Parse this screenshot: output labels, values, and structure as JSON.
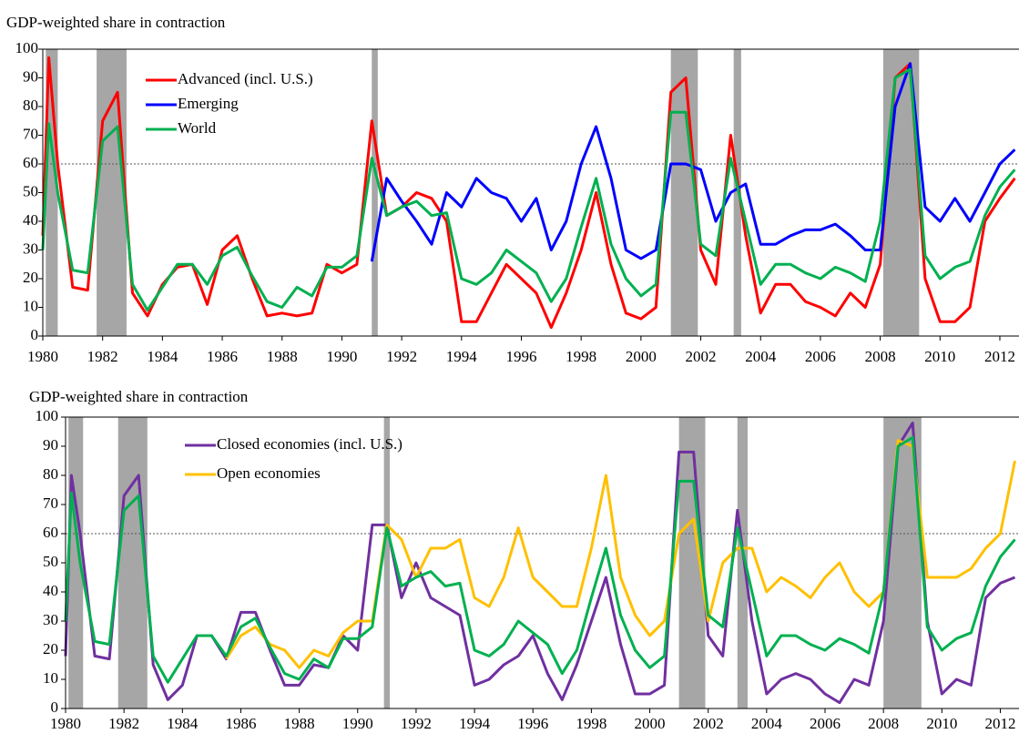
{
  "chart_data": [
    {
      "type": "line",
      "title": "GDP-weighted share in contraction",
      "x": [
        1980,
        1980.2,
        1980.5,
        1981,
        1981.5,
        1982,
        1982.5,
        1983,
        1983.5,
        1984,
        1984.5,
        1985,
        1985.5,
        1986,
        1986.5,
        1987,
        1987.5,
        1988,
        1988.5,
        1989,
        1989.5,
        1990,
        1990.5,
        1991,
        1991.5,
        1992,
        1992.5,
        1993,
        1993.5,
        1994,
        1994.5,
        1995,
        1995.5,
        1996,
        1996.5,
        1997,
        1997.5,
        1998,
        1998.5,
        1999,
        1999.5,
        2000,
        2000.5,
        2001,
        2001.5,
        2002,
        2002.5,
        2003,
        2003.5,
        2004,
        2004.5,
        2005,
        2005.5,
        2006,
        2006.5,
        2007,
        2007.5,
        2008,
        2008.5,
        2009,
        2009.5,
        2010,
        2010.5,
        2011,
        2011.5,
        2012,
        2012.5
      ],
      "series": [
        {
          "name": "Advanced (incl. U.S.)",
          "color": "#ff0000",
          "values": [
            35,
            97,
            60,
            17,
            16,
            75,
            85,
            15,
            7,
            18,
            24,
            25,
            11,
            30,
            35,
            20,
            7,
            8,
            7,
            8,
            25,
            22,
            25,
            75,
            42,
            45,
            50,
            48,
            40,
            5,
            5,
            15,
            25,
            20,
            15,
            3,
            15,
            30,
            50,
            25,
            8,
            6,
            10,
            85,
            90,
            30,
            18,
            70,
            35,
            8,
            18,
            18,
            12,
            10,
            7,
            15,
            10,
            25,
            90,
            95,
            20,
            5,
            5,
            10,
            40,
            48,
            55
          ]
        },
        {
          "name": "Emerging",
          "color": "#0000ff",
          "values": [
            null,
            null,
            null,
            null,
            null,
            null,
            null,
            null,
            null,
            null,
            null,
            null,
            null,
            null,
            null,
            null,
            null,
            null,
            null,
            null,
            null,
            null,
            null,
            26,
            55,
            47,
            40,
            32,
            50,
            45,
            55,
            50,
            48,
            40,
            48,
            30,
            40,
            60,
            73,
            55,
            30,
            27,
            30,
            60,
            60,
            58,
            40,
            50,
            53,
            32,
            32,
            35,
            37,
            37,
            39,
            35,
            30,
            30,
            80,
            95,
            45,
            40,
            48,
            40,
            50,
            60,
            65
          ]
        },
        {
          "name": "World",
          "color": "#00b050",
          "values": [
            30,
            74,
            50,
            23,
            22,
            68,
            73,
            18,
            9,
            17,
            25,
            25,
            18,
            28,
            31,
            21,
            12,
            10,
            17,
            14,
            24,
            24,
            28,
            62,
            42,
            45,
            47,
            42,
            43,
            20,
            18,
            22,
            30,
            26,
            22,
            12,
            20,
            38,
            55,
            32,
            20,
            14,
            18,
            78,
            78,
            32,
            28,
            62,
            40,
            18,
            25,
            25,
            22,
            20,
            24,
            22,
            19,
            40,
            90,
            93,
            28,
            20,
            24,
            26,
            42,
            52,
            58
          ]
        }
      ],
      "recessions": [
        [
          1980.1,
          1980.5
        ],
        [
          1981.8,
          1982.8
        ],
        [
          1991.0,
          1991.2
        ],
        [
          2001.0,
          2001.9
        ],
        [
          2003.1,
          2003.35
        ],
        [
          2008.1,
          2009.3
        ]
      ],
      "reference_line": 60,
      "xlim": [
        1980,
        2012.64
      ],
      "xticks": [
        1980,
        1982,
        1984,
        1986,
        1988,
        1990,
        1992,
        1994,
        1996,
        1998,
        2000,
        2002,
        2004,
        2006,
        2008,
        2010,
        2012
      ],
      "ylim": [
        0,
        100
      ],
      "yticks": [
        0,
        10,
        20,
        30,
        40,
        50,
        60,
        70,
        80,
        90,
        100
      ],
      "legend": "upper left"
    },
    {
      "type": "line",
      "title": "GDP-weighted share in contraction",
      "x": [
        1980,
        1980.2,
        1980.5,
        1981,
        1981.5,
        1982,
        1982.5,
        1983,
        1983.5,
        1984,
        1984.5,
        1985,
        1985.5,
        1986,
        1986.5,
        1987,
        1987.5,
        1988,
        1988.5,
        1989,
        1989.5,
        1990,
        1990.5,
        1991,
        1991.5,
        1992,
        1992.5,
        1993,
        1993.5,
        1994,
        1994.5,
        1995,
        1995.5,
        1996,
        1996.5,
        1997,
        1997.5,
        1998,
        1998.5,
        1999,
        1999.5,
        2000,
        2000.5,
        2001,
        2001.5,
        2002,
        2002.5,
        2003,
        2003.5,
        2004,
        2004.5,
        2005,
        2005.5,
        2006,
        2006.5,
        2007,
        2007.5,
        2008,
        2008.5,
        2009,
        2009.5,
        2010,
        2010.5,
        2011,
        2011.5,
        2012,
        2012.5
      ],
      "series": [
        {
          "name": "Closed economies (incl. U.S.)",
          "color": "#7030a0",
          "values": [
            18,
            80,
            60,
            18,
            17,
            73,
            80,
            15,
            3,
            8,
            25,
            25,
            17,
            33,
            33,
            20,
            8,
            8,
            15,
            14,
            25,
            20,
            63,
            63,
            38,
            50,
            38,
            35,
            32,
            8,
            10,
            15,
            18,
            25,
            12,
            3,
            15,
            30,
            45,
            22,
            5,
            5,
            8,
            88,
            88,
            25,
            18,
            68,
            30,
            5,
            10,
            12,
            10,
            5,
            2,
            10,
            8,
            30,
            90,
            98,
            30,
            5,
            10,
            8,
            38,
            43,
            45
          ]
        },
        {
          "name": "Open economies",
          "color": "#ffc000",
          "values": [
            null,
            null,
            null,
            null,
            null,
            null,
            null,
            null,
            null,
            null,
            null,
            null,
            17,
            25,
            28,
            22,
            20,
            14,
            20,
            18,
            26,
            30,
            30,
            63,
            58,
            45,
            55,
            55,
            58,
            38,
            35,
            45,
            62,
            45,
            40,
            35,
            35,
            55,
            80,
            45,
            32,
            25,
            30,
            60,
            65,
            30,
            50,
            55,
            55,
            40,
            45,
            42,
            38,
            45,
            50,
            40,
            35,
            40,
            92,
            90,
            45,
            45,
            45,
            48,
            55,
            60,
            85
          ]
        },
        {
          "name": null,
          "color": "#00b050",
          "values": [
            30,
            74,
            50,
            23,
            22,
            68,
            73,
            18,
            9,
            17,
            25,
            25,
            18,
            28,
            31,
            21,
            12,
            10,
            17,
            14,
            24,
            24,
            28,
            62,
            42,
            45,
            47,
            42,
            43,
            20,
            18,
            22,
            30,
            26,
            22,
            12,
            20,
            38,
            55,
            32,
            20,
            14,
            18,
            78,
            78,
            32,
            28,
            62,
            40,
            18,
            25,
            25,
            22,
            20,
            24,
            22,
            19,
            40,
            90,
            93,
            28,
            20,
            24,
            26,
            42,
            52,
            58
          ]
        }
      ],
      "recessions": [
        [
          1980.1,
          1980.6
        ],
        [
          1981.8,
          1982.8
        ],
        [
          1990.9,
          1991.1
        ],
        [
          2001.0,
          2001.9
        ],
        [
          2003.0,
          2003.35
        ],
        [
          2008.0,
          2009.3
        ]
      ],
      "reference_line": 60,
      "xlim": [
        1980,
        2012.64
      ],
      "xticks": [
        1980,
        1982,
        1984,
        1986,
        1988,
        1990,
        1992,
        1994,
        1996,
        1998,
        2000,
        2002,
        2004,
        2006,
        2008,
        2010,
        2012
      ],
      "ylim": [
        0,
        100
      ],
      "yticks": [
        0,
        10,
        20,
        30,
        40,
        50,
        60,
        70,
        80,
        90,
        100
      ],
      "legend": "upper left"
    }
  ]
}
